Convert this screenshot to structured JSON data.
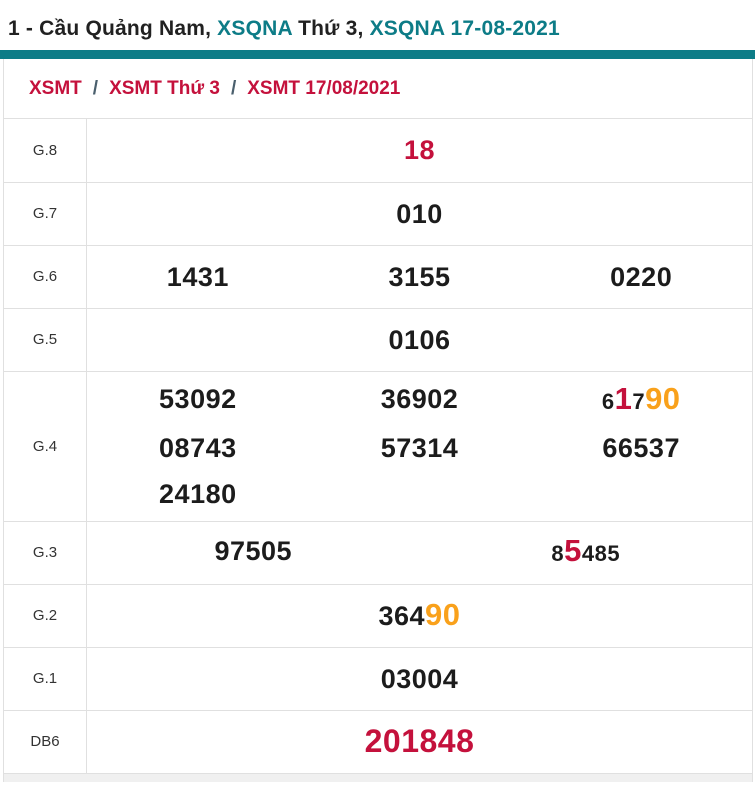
{
  "title": {
    "segments": [
      {
        "text": "1 - Cầu Quảng Nam, ",
        "style": "dark"
      },
      {
        "text": "XSQNA",
        "style": "teal"
      },
      {
        "text": " Thứ 3, ",
        "style": "dark"
      },
      {
        "text": "XSQNA 17-08-2021",
        "style": "teal"
      }
    ]
  },
  "breadcrumb": {
    "separator": "/",
    "items": [
      {
        "label": "XSMT"
      },
      {
        "label": "XSMT Thứ 3"
      },
      {
        "label": "XSMT 17/08/2021"
      }
    ]
  },
  "colors": {
    "accent_teal": "#0d7c87",
    "link_red": "#c4113c",
    "highlight_red": "#c4113c",
    "highlight_orange": "#f9a11b",
    "digit_dark": "#1c1c1c",
    "border_gray": "#e0e0e0"
  },
  "results": {
    "rows": [
      {
        "label": "G.8",
        "cols": 1,
        "tall": false,
        "lines": [
          [
            [
              {
                "t": "18",
                "hl": "red"
              }
            ]
          ]
        ]
      },
      {
        "label": "G.7",
        "cols": 1,
        "tall": false,
        "lines": [
          [
            [
              {
                "t": "010"
              }
            ]
          ]
        ]
      },
      {
        "label": "G.6",
        "cols": 3,
        "tall": false,
        "lines": [
          [
            [
              {
                "t": "1431"
              }
            ],
            [
              {
                "t": "3155"
              }
            ],
            [
              {
                "t": "0220"
              }
            ]
          ]
        ]
      },
      {
        "label": "G.5",
        "cols": 1,
        "tall": false,
        "lines": [
          [
            [
              {
                "t": "0106"
              }
            ]
          ]
        ]
      },
      {
        "label": "G.4",
        "cols": 3,
        "tall": true,
        "lines": [
          [
            [
              {
                "t": "53092"
              }
            ],
            [
              {
                "t": "36902"
              }
            ],
            [
              {
                "t": "6",
                "sz": "s"
              },
              {
                "t": "1",
                "hl": "red",
                "sz": "l"
              },
              {
                "t": "7",
                "sz": "s"
              },
              {
                "t": "90",
                "hl": "orange",
                "sz": "l"
              }
            ]
          ],
          [
            [
              {
                "t": "08743"
              }
            ],
            [
              {
                "t": "57314"
              }
            ],
            [
              {
                "t": "66537"
              }
            ]
          ],
          [
            [
              {
                "t": "24180"
              }
            ],
            null,
            null
          ]
        ]
      },
      {
        "label": "G.3",
        "cols": 2,
        "tall": false,
        "lines": [
          [
            [
              {
                "t": "97505"
              }
            ],
            [
              {
                "t": "8",
                "sz": "s"
              },
              {
                "t": "5",
                "hl": "red",
                "sz": "l"
              },
              {
                "t": "485",
                "sz": "s"
              }
            ]
          ]
        ]
      },
      {
        "label": "G.2",
        "cols": 1,
        "tall": false,
        "lines": [
          [
            [
              {
                "t": "364"
              },
              {
                "t": "90",
                "hl": "orange",
                "sz": "l"
              }
            ]
          ]
        ]
      },
      {
        "label": "G.1",
        "cols": 1,
        "tall": false,
        "lines": [
          [
            [
              {
                "t": "03004"
              }
            ]
          ]
        ]
      },
      {
        "label": "DB6",
        "cols": 1,
        "tall": false,
        "lines": [
          [
            [
              {
                "t": "201848",
                "hl": "red",
                "sz": "xl"
              }
            ]
          ]
        ]
      }
    ]
  }
}
